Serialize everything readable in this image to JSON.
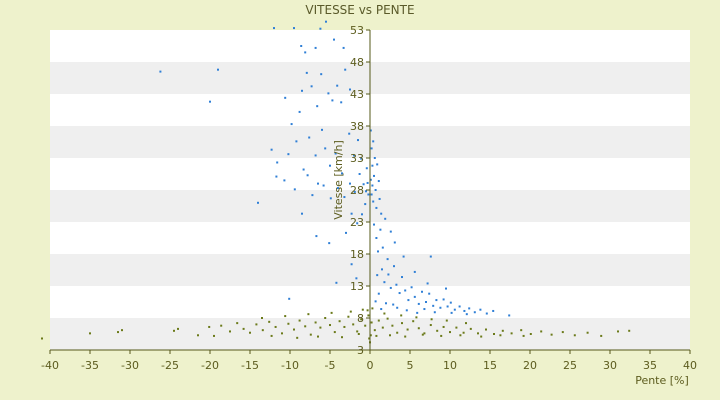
{
  "chart_data": {
    "type": "scatter",
    "title": "VITESSE vs PENTE",
    "xlabel": "Pente [%]",
    "ylabel": "Vitesse [km/h]",
    "xlim": [
      -40,
      40
    ],
    "ylim": [
      3,
      53
    ],
    "xticks": [
      "-40",
      "-35",
      "-30",
      "-25",
      "-20",
      "-15",
      "-10",
      "-5",
      "0",
      "5",
      "10",
      "15",
      "20",
      "25",
      "30",
      "35",
      "40"
    ],
    "yticks": [
      "3",
      "8",
      "13",
      "18",
      "23",
      "28",
      "33",
      "38",
      "43",
      "48",
      "53"
    ],
    "grid": "horizontal-bands",
    "legend": "none",
    "colors": {
      "background": "#eef2cc",
      "band_light": "#ffffff",
      "band_dark": "#efefef",
      "axis": "#55581a",
      "series_blue": "#2f7fd6",
      "series_green": "#6b7a1a"
    },
    "series": [
      {
        "color": "#2f7fd6",
        "points": [
          [
            -26.2,
            46.5
          ],
          [
            -19,
            46.8
          ],
          [
            -20,
            41.8
          ],
          [
            -12,
            53.3
          ],
          [
            -9.5,
            53.3
          ],
          [
            -8.6,
            50.5
          ],
          [
            -8.1,
            49.5
          ],
          [
            -6.8,
            50.2
          ],
          [
            -6.2,
            53.2
          ],
          [
            -5.5,
            54.3
          ],
          [
            -4.5,
            51.5
          ],
          [
            -3.3,
            50.2
          ],
          [
            -10.6,
            42.4
          ],
          [
            -9.8,
            38.3
          ],
          [
            -9.2,
            35.6
          ],
          [
            -8.8,
            40.2
          ],
          [
            -8.5,
            43.5
          ],
          [
            -7.9,
            46.3
          ],
          [
            -7.3,
            44.2
          ],
          [
            -6.6,
            41.1
          ],
          [
            -6.1,
            46.1
          ],
          [
            -5.2,
            43.1
          ],
          [
            -4.7,
            42.0
          ],
          [
            -4.1,
            44.3
          ],
          [
            -3.6,
            41.7
          ],
          [
            -3.1,
            46.8
          ],
          [
            -2.5,
            43.7
          ],
          [
            -12.3,
            34.3
          ],
          [
            -11.6,
            32.3
          ],
          [
            -10.2,
            33.6
          ],
          [
            -8.3,
            31.2
          ],
          [
            -7.6,
            36.2
          ],
          [
            -6.8,
            33.4
          ],
          [
            -6.0,
            37.4
          ],
          [
            -5.6,
            34.5
          ],
          [
            -5.0,
            31.8
          ],
          [
            -4.3,
            33.7
          ],
          [
            -3.5,
            30.6
          ],
          [
            -2.6,
            36.8
          ],
          [
            -2.0,
            33.4
          ],
          [
            -1.5,
            35.8
          ],
          [
            -1.1,
            32.9
          ],
          [
            -14.0,
            26.0
          ],
          [
            -11.7,
            30.1
          ],
          [
            -10.7,
            29.5
          ],
          [
            -9.4,
            28.1
          ],
          [
            -8.5,
            24.3
          ],
          [
            -7.8,
            30.3
          ],
          [
            -7.2,
            27.2
          ],
          [
            -6.5,
            29.0
          ],
          [
            -5.8,
            28.7
          ],
          [
            -4.9,
            26.7
          ],
          [
            -4.0,
            28.3
          ],
          [
            -3.2,
            26.9
          ],
          [
            -2.5,
            29.0
          ],
          [
            -1.9,
            27.7
          ],
          [
            -1.3,
            30.5
          ],
          [
            -0.8,
            28.9
          ],
          [
            -0.4,
            31.4
          ],
          [
            -0.2,
            27.3
          ],
          [
            -0.6,
            25.8
          ],
          [
            -1.0,
            24.2
          ],
          [
            -1.6,
            22.8
          ],
          [
            -2.3,
            24.3
          ],
          [
            -3.0,
            21.3
          ],
          [
            -6.7,
            20.8
          ],
          [
            -5.1,
            19.7
          ],
          [
            -10.1,
            11.0
          ],
          [
            -4.2,
            13.5
          ],
          [
            -2.3,
            16.4
          ],
          [
            -1.7,
            14.2
          ],
          [
            0.1,
            29.6
          ],
          [
            0.3,
            28.7
          ],
          [
            0.2,
            27.3
          ],
          [
            0.5,
            30.2
          ],
          [
            0.4,
            26.2
          ],
          [
            0.7,
            28.0
          ],
          [
            0.3,
            31.8
          ],
          [
            0.6,
            33.0
          ],
          [
            0.9,
            32.0
          ],
          [
            1.1,
            29.4
          ],
          [
            0.8,
            25.2
          ],
          [
            1.2,
            26.6
          ],
          [
            1.4,
            24.3
          ],
          [
            0.2,
            34.5
          ],
          [
            0.4,
            35.6
          ],
          [
            0.1,
            37.3
          ],
          [
            -0.3,
            29.1
          ],
          [
            -0.5,
            27.8
          ],
          [
            0.5,
            22.6
          ],
          [
            0.8,
            20.5
          ],
          [
            1.0,
            18.4
          ],
          [
            1.3,
            21.8
          ],
          [
            1.6,
            19.0
          ],
          [
            1.9,
            23.5
          ],
          [
            2.2,
            17.2
          ],
          [
            1.5,
            15.6
          ],
          [
            1.8,
            13.6
          ],
          [
            2.3,
            14.8
          ],
          [
            2.6,
            12.7
          ],
          [
            3.0,
            16.1
          ],
          [
            3.3,
            13.2
          ],
          [
            3.7,
            11.9
          ],
          [
            4.0,
            14.4
          ],
          [
            4.4,
            12.3
          ],
          [
            4.8,
            10.8
          ],
          [
            5.2,
            12.8
          ],
          [
            5.6,
            11.3
          ],
          [
            6.1,
            10.2
          ],
          [
            6.5,
            12.1
          ],
          [
            7.0,
            10.5
          ],
          [
            7.4,
            11.8
          ],
          [
            7.9,
            9.9
          ],
          [
            8.3,
            10.8
          ],
          [
            8.8,
            9.6
          ],
          [
            9.2,
            10.9
          ],
          [
            9.7,
            9.8
          ],
          [
            10.1,
            10.4
          ],
          [
            10.6,
            9.3
          ],
          [
            11.2,
            9.8
          ],
          [
            11.8,
            9.1
          ],
          [
            12.4,
            9.5
          ],
          [
            13.1,
            8.9
          ],
          [
            13.8,
            9.3
          ],
          [
            14.6,
            8.7
          ],
          [
            15.4,
            9.1
          ],
          [
            17.4,
            8.4
          ],
          [
            9.5,
            12.6
          ],
          [
            7.2,
            13.4
          ],
          [
            5.6,
            15.2
          ],
          [
            4.2,
            17.6
          ],
          [
            3.1,
            19.8
          ],
          [
            2.6,
            21.5
          ],
          [
            7.6,
            17.6
          ],
          [
            2.9,
            10.1
          ],
          [
            3.4,
            9.6
          ],
          [
            4.6,
            9.2
          ],
          [
            5.9,
            8.8
          ],
          [
            6.8,
            9.4
          ],
          [
            8.1,
            8.9
          ],
          [
            10.2,
            8.8
          ],
          [
            12.1,
            8.6
          ],
          [
            1.1,
            11.8
          ],
          [
            1.4,
            9.4
          ],
          [
            0.7,
            10.6
          ],
          [
            0.9,
            14.7
          ],
          [
            2.0,
            10.3
          ]
        ]
      },
      {
        "color": "#6b7a1a",
        "points": [
          [
            -41.0,
            4.8
          ],
          [
            -35.0,
            5.6
          ],
          [
            -31.5,
            5.8
          ],
          [
            -31.0,
            6.1
          ],
          [
            -24.5,
            6.0
          ],
          [
            -24.0,
            6.3
          ],
          [
            -21.5,
            5.3
          ],
          [
            -20.1,
            6.6
          ],
          [
            -19.5,
            5.2
          ],
          [
            -18.6,
            6.8
          ],
          [
            -17.5,
            5.9
          ],
          [
            -16.6,
            7.2
          ],
          [
            -15.8,
            6.3
          ],
          [
            -15.0,
            5.7
          ],
          [
            -14.2,
            7.0
          ],
          [
            -13.4,
            6.1
          ],
          [
            -12.6,
            7.4
          ],
          [
            -11.8,
            6.6
          ],
          [
            -11.0,
            5.6
          ],
          [
            -10.2,
            7.1
          ],
          [
            -9.5,
            6.2
          ],
          [
            -8.8,
            7.6
          ],
          [
            -8.1,
            6.7
          ],
          [
            -7.4,
            5.4
          ],
          [
            -6.8,
            7.3
          ],
          [
            -6.2,
            6.5
          ],
          [
            -5.6,
            8.0
          ],
          [
            -5.0,
            6.9
          ],
          [
            -4.4,
            5.8
          ],
          [
            -3.8,
            7.5
          ],
          [
            -3.2,
            6.6
          ],
          [
            -2.7,
            8.2
          ],
          [
            -2.1,
            7.0
          ],
          [
            -1.6,
            5.9
          ],
          [
            -1.1,
            7.8
          ],
          [
            -0.6,
            6.8
          ],
          [
            -0.2,
            8.4
          ],
          [
            0.2,
            7.3
          ],
          [
            0.6,
            6.1
          ],
          [
            1.1,
            7.6
          ],
          [
            1.6,
            6.5
          ],
          [
            2.2,
            7.9
          ],
          [
            2.8,
            6.8
          ],
          [
            3.4,
            5.7
          ],
          [
            4.0,
            7.2
          ],
          [
            4.7,
            6.2
          ],
          [
            5.4,
            7.5
          ],
          [
            6.1,
            6.4
          ],
          [
            6.8,
            5.6
          ],
          [
            7.6,
            6.9
          ],
          [
            8.4,
            6.0
          ],
          [
            9.2,
            6.6
          ],
          [
            10.0,
            5.8
          ],
          [
            10.8,
            6.5
          ],
          [
            11.7,
            5.7
          ],
          [
            12.6,
            6.3
          ],
          [
            13.5,
            5.6
          ],
          [
            14.5,
            6.2
          ],
          [
            15.5,
            5.5
          ],
          [
            16.6,
            6.0
          ],
          [
            17.7,
            5.6
          ],
          [
            18.9,
            6.1
          ],
          [
            20.1,
            5.5
          ],
          [
            21.4,
            5.9
          ],
          [
            22.7,
            5.4
          ],
          [
            24.1,
            5.8
          ],
          [
            25.6,
            5.3
          ],
          [
            27.2,
            5.7
          ],
          [
            28.9,
            5.2
          ],
          [
            31.0,
            5.9
          ],
          [
            32.4,
            6.0
          ],
          [
            -0.1,
            4.8
          ],
          [
            0.0,
            4.2
          ],
          [
            0.1,
            5.3
          ],
          [
            -0.3,
            9.2
          ],
          [
            0.3,
            9.5
          ],
          [
            -12.3,
            5.2
          ],
          [
            -9.1,
            4.9
          ],
          [
            -6.5,
            5.1
          ],
          [
            -3.5,
            5.0
          ],
          [
            -1.4,
            5.5
          ],
          [
            0.8,
            5.2
          ],
          [
            2.5,
            5.3
          ],
          [
            4.4,
            5.1
          ],
          [
            6.6,
            5.4
          ],
          [
            8.9,
            5.2
          ],
          [
            11.3,
            5.3
          ],
          [
            13.9,
            5.1
          ],
          [
            16.3,
            5.3
          ],
          [
            19.2,
            5.2
          ],
          [
            -13.5,
            8.0
          ],
          [
            -10.6,
            8.3
          ],
          [
            -7.7,
            8.6
          ],
          [
            -4.8,
            8.8
          ],
          [
            -2.4,
            9.0
          ],
          [
            -0.9,
            9.3
          ],
          [
            1.8,
            8.7
          ],
          [
            3.9,
            8.4
          ],
          [
            5.8,
            8.1
          ],
          [
            7.7,
            7.8
          ],
          [
            9.6,
            7.6
          ],
          [
            12.0,
            7.2
          ]
        ]
      }
    ]
  }
}
